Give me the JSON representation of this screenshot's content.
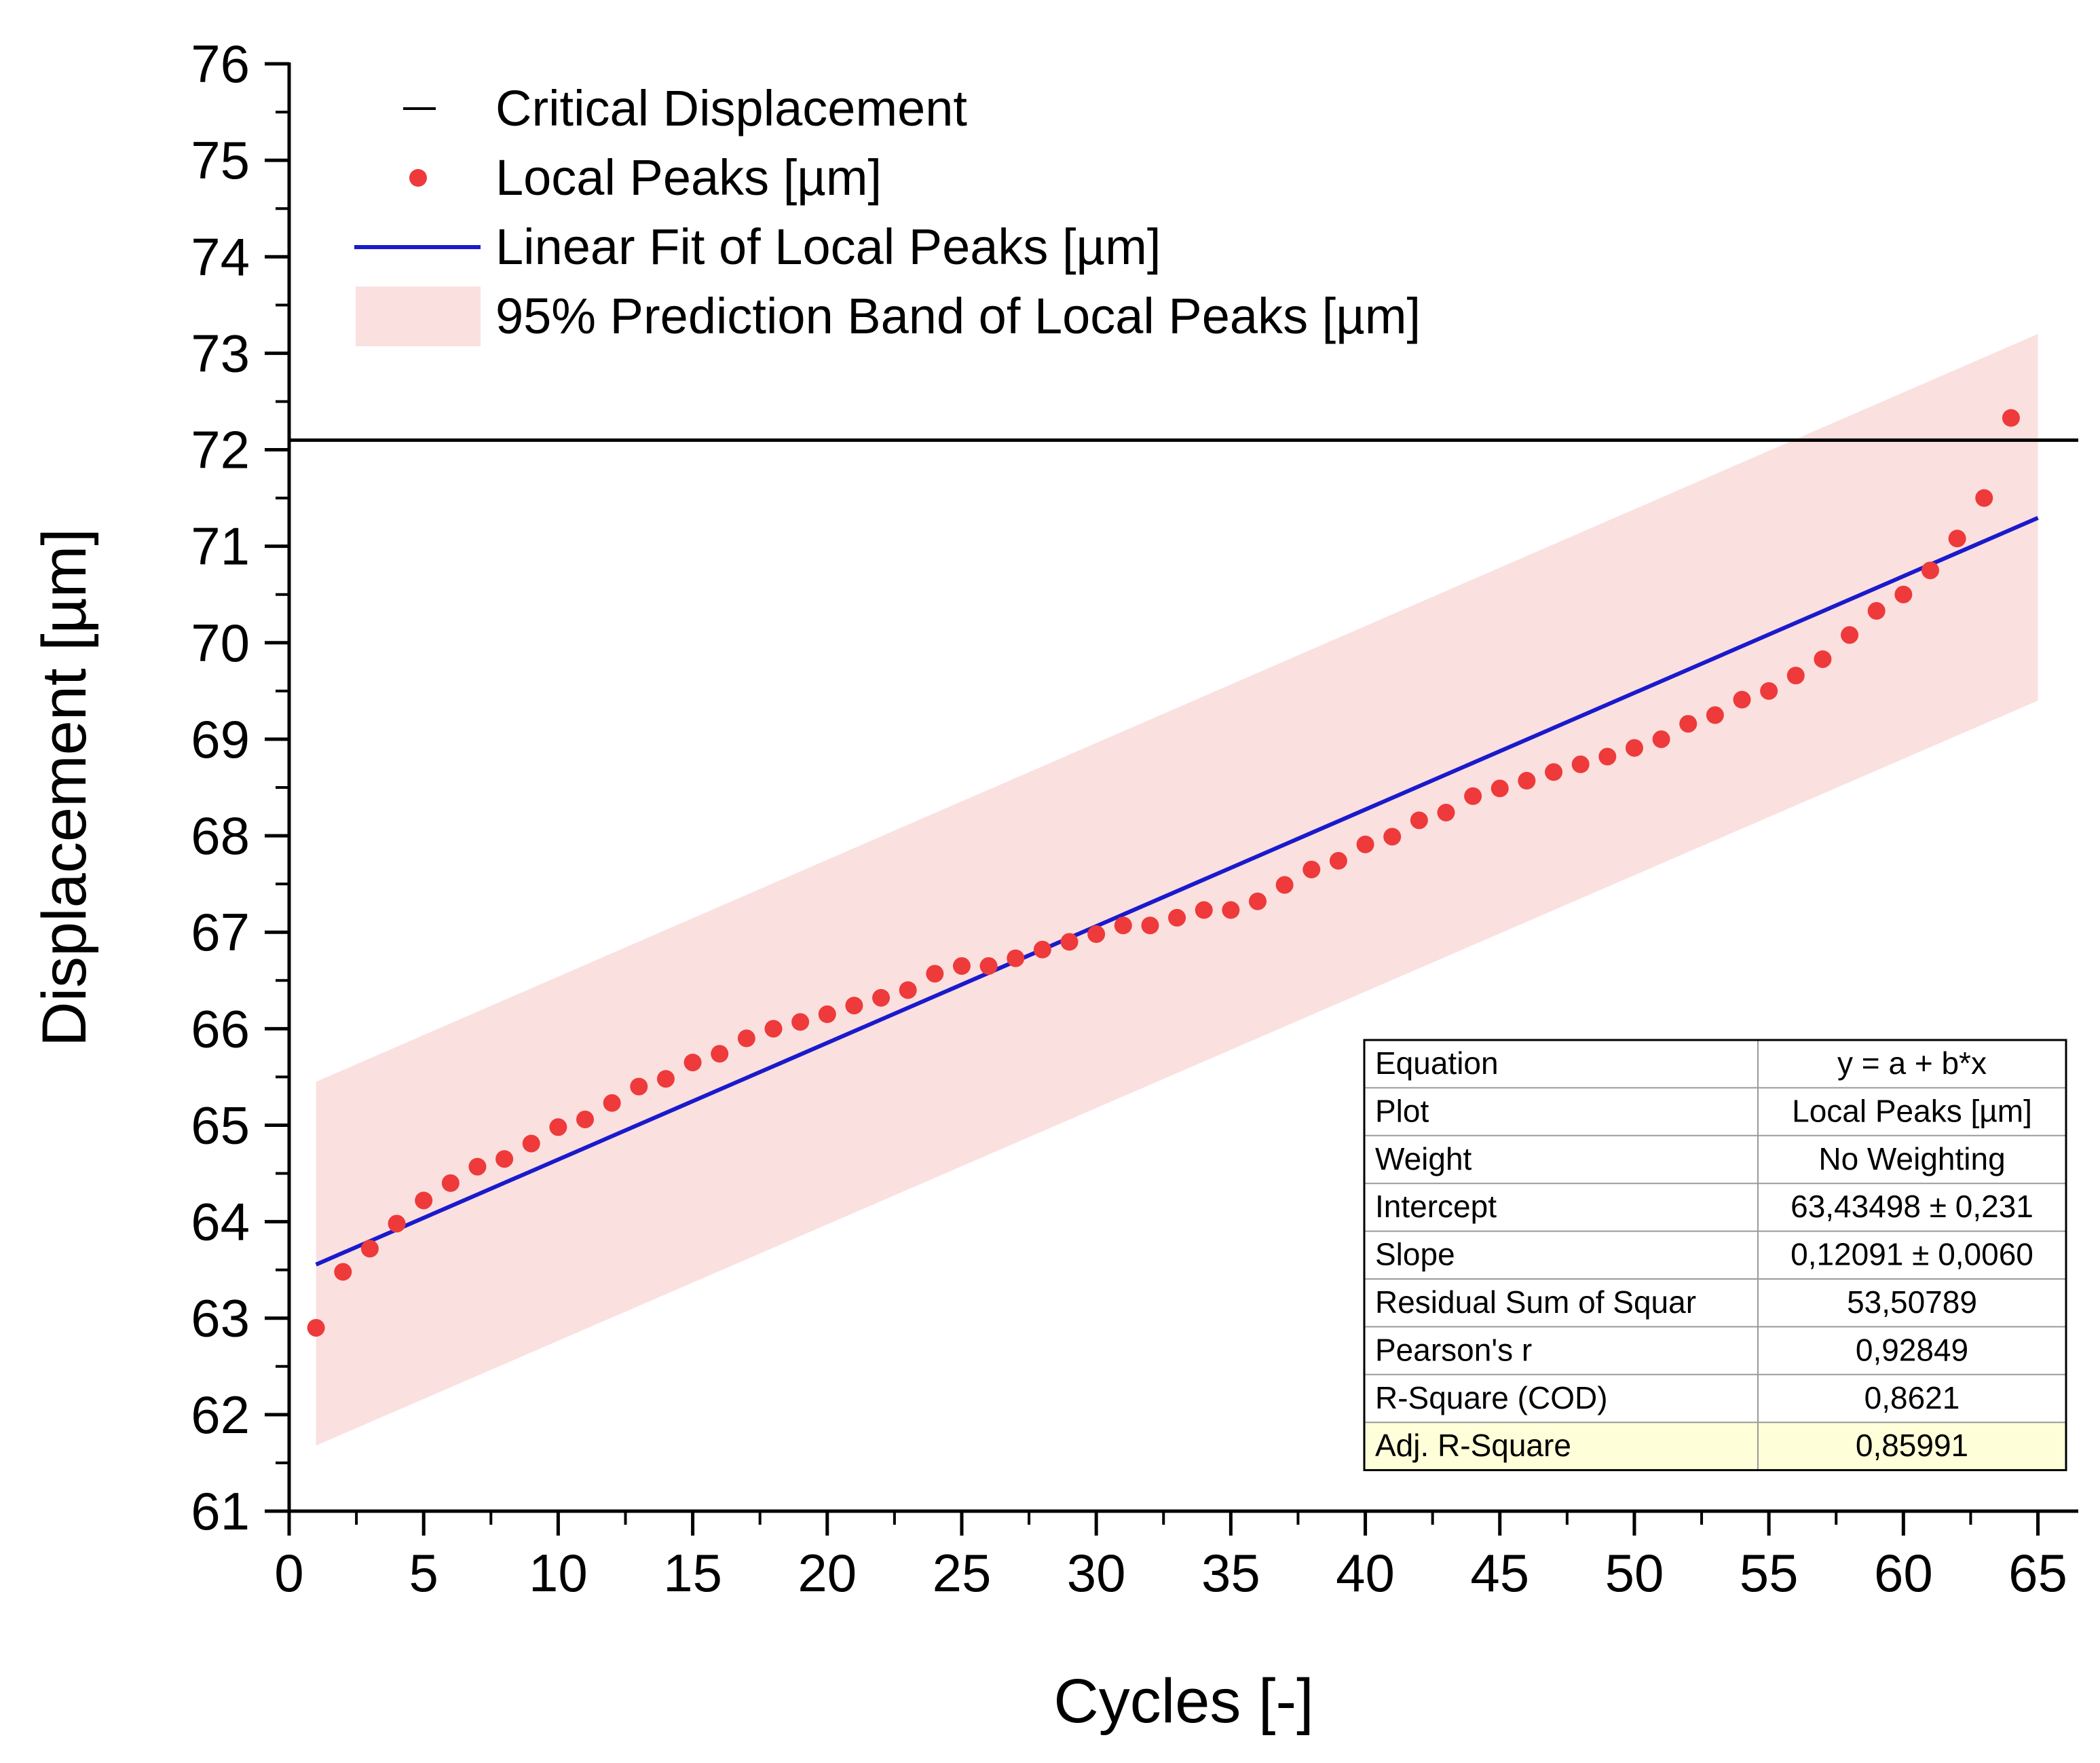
{
  "chart_data": {
    "type": "scatter",
    "title": "",
    "xlabel": "Cycles [-]",
    "ylabel": "Displacement [µm]",
    "xlim": [
      0,
      66.5
    ],
    "ylim": [
      61,
      76
    ],
    "xticks": [
      0,
      5,
      10,
      15,
      20,
      25,
      30,
      35,
      40,
      45,
      50,
      55,
      60,
      65
    ],
    "yticks": [
      61,
      62,
      63,
      64,
      65,
      66,
      67,
      68,
      69,
      70,
      71,
      72,
      73,
      74,
      75,
      76
    ],
    "critical_displacement": 72.1,
    "series": [
      {
        "name": "Local Peaks [µm]",
        "kind": "scatter",
        "color": "#ee3a3a",
        "x": [
          1,
          2,
          3,
          4,
          5,
          6,
          7,
          8,
          9,
          10,
          11,
          12,
          13,
          14,
          15,
          16,
          17,
          18,
          19,
          20,
          21,
          22,
          23,
          24,
          25,
          26,
          27,
          28,
          29,
          30,
          31,
          32,
          33,
          34,
          35,
          36,
          37,
          38,
          39,
          40,
          41,
          42,
          43,
          44,
          45,
          46,
          47,
          48,
          49,
          50,
          51,
          52,
          53,
          54,
          55,
          56,
          57,
          58,
          59,
          60,
          61,
          62,
          63,
          64
        ],
        "y": [
          62.9,
          63.48,
          63.72,
          63.98,
          64.22,
          64.4,
          64.57,
          64.65,
          64.81,
          64.98,
          65.06,
          65.23,
          65.4,
          65.48,
          65.65,
          65.74,
          65.9,
          66.0,
          66.07,
          66.15,
          66.24,
          66.32,
          66.4,
          66.57,
          66.65,
          66.65,
          66.73,
          66.82,
          66.9,
          66.98,
          67.07,
          67.07,
          67.15,
          67.23,
          67.23,
          67.32,
          67.49,
          67.65,
          67.74,
          67.91,
          67.99,
          68.16,
          68.24,
          68.41,
          68.49,
          68.57,
          68.66,
          68.74,
          68.82,
          68.91,
          69.0,
          69.16,
          69.25,
          69.41,
          69.5,
          69.66,
          69.83,
          70.08,
          70.33,
          70.5,
          70.75,
          71.08,
          71.5,
          72.33
        ]
      },
      {
        "name": "Linear Fit of Local Peaks [µm]",
        "kind": "line",
        "color": "#1a1acc",
        "x": [
          1,
          65
        ],
        "y": [
          63.556,
          71.294
        ]
      },
      {
        "name": "95% Prediction Band of Local Peaks [µm]",
        "kind": "band",
        "color": "#fbe0e0",
        "x": [
          1,
          65
        ],
        "upper": [
          65.45,
          73.2
        ],
        "lower": [
          61.68,
          69.4
        ]
      },
      {
        "name": "Critical Displacement",
        "kind": "hline",
        "color": "#000000",
        "y": 72.1
      }
    ],
    "legend": {
      "position": "top-left",
      "entries": [
        "Critical Displacement",
        "Local Peaks [µm]",
        "Linear Fit of Local Peaks [µm]",
        "95% Prediction Band of Local Peaks [µm]"
      ]
    },
    "stats_table": {
      "position": "bottom-right",
      "rows": [
        {
          "label": "Equation",
          "value": "y = a + b*x"
        },
        {
          "label": "Plot",
          "value": "Local Peaks [µm]"
        },
        {
          "label": "Weight",
          "value": "No Weighting"
        },
        {
          "label": "Intercept",
          "value": "63,43498 ± 0,231"
        },
        {
          "label": "Slope",
          "value": "0,12091 ± 0,0060"
        },
        {
          "label": "Residual Sum of Squar",
          "value": "53,50789"
        },
        {
          "label": "Pearson's r",
          "value": "0,92849"
        },
        {
          "label": "R-Square (COD)",
          "value": "0,8621"
        },
        {
          "label": "Adj. R-Square",
          "value": "0,85991"
        }
      ],
      "highlight_color": "#fefed8"
    }
  }
}
